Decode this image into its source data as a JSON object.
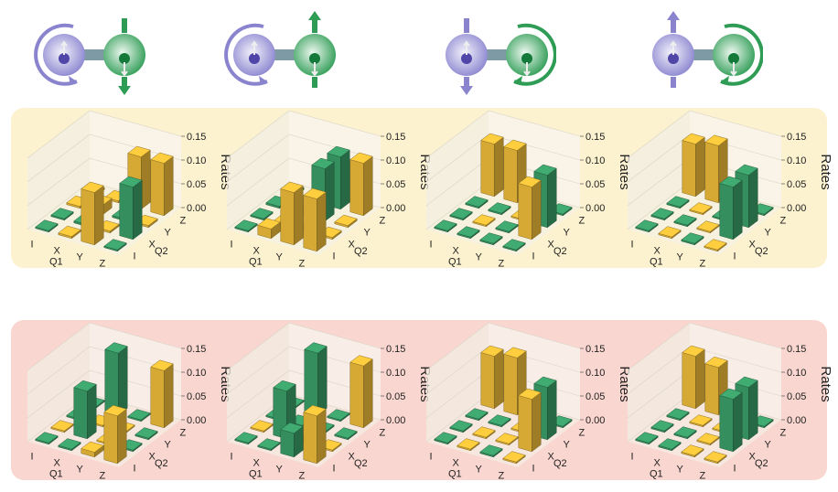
{
  "colors": {
    "qubit1": "#8a84cf",
    "qubit2": "#2e9c55",
    "bar_yellow": "#e8b838",
    "bar_green": "#3a9a66",
    "band_top": "#fcf2cf",
    "band_bottom": "#f9d6cf"
  },
  "diagrams": [
    {
      "q1_arrow": "circular-ccw",
      "q2_arrow": "vertical-down",
      "q1_inner": "up-down",
      "q2_inner": "down"
    },
    {
      "q1_arrow": "circular-ccw",
      "q2_arrow": "vertical-up",
      "q1_inner": "up-down",
      "q2_inner": "down"
    },
    {
      "q1_arrow": "vertical-down",
      "q2_arrow": "circular-cw",
      "q1_inner": "up-down",
      "q2_inner": "down"
    },
    {
      "q1_arrow": "vertical-up",
      "q2_arrow": "circular-cw",
      "q1_inner": "up-down",
      "q2_inner": "down"
    }
  ],
  "chart_data": [
    {
      "type": "bar3d",
      "row": "top",
      "panel": 1,
      "ylabel": "Rates",
      "zticks": [
        "0.00",
        "0.05",
        "0.10",
        "0.15"
      ],
      "zlim": [
        0,
        0.15
      ],
      "q1_ticks": [
        "I",
        "X",
        "Y",
        "Z"
      ],
      "q2_ticks": [
        "I",
        "X",
        "Y",
        "Z"
      ],
      "xlabel": "Q1",
      "qlabel2": "Q2",
      "bars": [
        {
          "q1": "I",
          "q2": "I",
          "v": 0.003,
          "c": "g"
        },
        {
          "q1": "X",
          "q2": "I",
          "v": 0.004,
          "c": "y"
        },
        {
          "q1": "Y",
          "q2": "I",
          "v": 0.11,
          "c": "y"
        },
        {
          "q1": "Z",
          "q2": "I",
          "v": 0.003,
          "c": "g"
        },
        {
          "q1": "I",
          "q2": "X",
          "v": 0.003,
          "c": "g"
        },
        {
          "q1": "X",
          "q2": "X",
          "v": 0.004,
          "c": "g"
        },
        {
          "q1": "Y",
          "q2": "X",
          "v": 0.004,
          "c": "y"
        },
        {
          "q1": "Z",
          "q2": "X",
          "v": 0.11,
          "c": "g"
        },
        {
          "q1": "I",
          "q2": "Y",
          "v": 0.004,
          "c": "y"
        },
        {
          "q1": "X",
          "q2": "Y",
          "v": 0.02,
          "c": "y"
        },
        {
          "q1": "Y",
          "q2": "Y",
          "v": 0.004,
          "c": "g"
        },
        {
          "q1": "Z",
          "q2": "Y",
          "v": 0.004,
          "c": "y"
        },
        {
          "q1": "I",
          "q2": "Z",
          "v": 0.004,
          "c": "y"
        },
        {
          "q1": "X",
          "q2": "Z",
          "v": 0.004,
          "c": "y"
        },
        {
          "q1": "Y",
          "q2": "Z",
          "v": 0.11,
          "c": "y"
        },
        {
          "q1": "Z",
          "q2": "Z",
          "v": 0.11,
          "c": "y"
        }
      ]
    },
    {
      "type": "bar3d",
      "row": "top",
      "panel": 2,
      "ylabel": "Rates",
      "zticks": [
        "0.00",
        "0.05",
        "0.10",
        "0.15"
      ],
      "zlim": [
        0,
        0.15
      ],
      "q1_ticks": [
        "I",
        "X",
        "Y",
        "Z"
      ],
      "q2_ticks": [
        "I",
        "X",
        "Y",
        "Z"
      ],
      "xlabel": "Q1",
      "qlabel2": "Q2",
      "bars": [
        {
          "q1": "I",
          "q2": "I",
          "v": 0.003,
          "c": "g"
        },
        {
          "q1": "X",
          "q2": "I",
          "v": 0.02,
          "c": "y"
        },
        {
          "q1": "Y",
          "q2": "I",
          "v": 0.11,
          "c": "y"
        },
        {
          "q1": "Z",
          "q2": "I",
          "v": 0.11,
          "c": "y"
        },
        {
          "q1": "I",
          "q2": "X",
          "v": 0.003,
          "c": "g"
        },
        {
          "q1": "X",
          "q2": "X",
          "v": 0.004,
          "c": "y"
        },
        {
          "q1": "Y",
          "q2": "X",
          "v": 0.004,
          "c": "g"
        },
        {
          "q1": "Z",
          "q2": "X",
          "v": 0.004,
          "c": "y"
        },
        {
          "q1": "I",
          "q2": "Y",
          "v": 0.004,
          "c": "g"
        },
        {
          "q1": "X",
          "q2": "Y",
          "v": 0.004,
          "c": "g"
        },
        {
          "q1": "Y",
          "q2": "Y",
          "v": 0.11,
          "c": "g"
        },
        {
          "q1": "Z",
          "q2": "Y",
          "v": 0.004,
          "c": "y"
        },
        {
          "q1": "I",
          "q2": "Z",
          "v": 0.004,
          "c": "g"
        },
        {
          "q1": "X",
          "q2": "Z",
          "v": 0.004,
          "c": "g"
        },
        {
          "q1": "Y",
          "q2": "Z",
          "v": 0.11,
          "c": "g"
        },
        {
          "q1": "Z",
          "q2": "Z",
          "v": 0.11,
          "c": "y"
        }
      ]
    },
    {
      "type": "bar3d",
      "row": "top",
      "panel": 3,
      "ylabel": "Rates",
      "zticks": [
        "0.00",
        "0.05",
        "0.10",
        "0.15"
      ],
      "zlim": [
        0,
        0.15
      ],
      "q1_ticks": [
        "I",
        "X",
        "Y",
        "Z"
      ],
      "q2_ticks": [
        "I",
        "X",
        "Y",
        "Z"
      ],
      "xlabel": "Q1",
      "qlabel2": "Q2",
      "bars": [
        {
          "q1": "I",
          "q2": "I",
          "v": 0.003,
          "c": "g"
        },
        {
          "q1": "X",
          "q2": "I",
          "v": 0.003,
          "c": "g"
        },
        {
          "q1": "Y",
          "q2": "I",
          "v": 0.003,
          "c": "g"
        },
        {
          "q1": "Z",
          "q2": "I",
          "v": 0.003,
          "c": "g"
        },
        {
          "q1": "I",
          "q2": "X",
          "v": 0.003,
          "c": "g"
        },
        {
          "q1": "X",
          "q2": "X",
          "v": 0.003,
          "c": "y"
        },
        {
          "q1": "Y",
          "q2": "X",
          "v": 0.003,
          "c": "g"
        },
        {
          "q1": "Z",
          "q2": "X",
          "v": 0.11,
          "c": "y"
        },
        {
          "q1": "I",
          "q2": "Y",
          "v": 0.003,
          "c": "g"
        },
        {
          "q1": "X",
          "q2": "Y",
          "v": 0.003,
          "c": "g"
        },
        {
          "q1": "Y",
          "q2": "Y",
          "v": 0.003,
          "c": "y"
        },
        {
          "q1": "Z",
          "q2": "Y",
          "v": 0.11,
          "c": "g"
        },
        {
          "q1": "I",
          "q2": "Z",
          "v": 0.11,
          "c": "y"
        },
        {
          "q1": "X",
          "q2": "Z",
          "v": 0.11,
          "c": "y"
        },
        {
          "q1": "Y",
          "q2": "Z",
          "v": 0.003,
          "c": "g"
        },
        {
          "q1": "Z",
          "q2": "Z",
          "v": 0.003,
          "c": "g"
        }
      ]
    },
    {
      "type": "bar3d",
      "row": "top",
      "panel": 4,
      "ylabel": "Rates",
      "zticks": [
        "0.00",
        "0.05",
        "0.10",
        "0.15"
      ],
      "zlim": [
        0,
        0.15
      ],
      "q1_ticks": [
        "I",
        "X",
        "Y",
        "Z"
      ],
      "q2_ticks": [
        "I",
        "X",
        "Y",
        "Z"
      ],
      "xlabel": "Q1",
      "qlabel2": "Q2",
      "bars": [
        {
          "q1": "I",
          "q2": "I",
          "v": 0.003,
          "c": "g"
        },
        {
          "q1": "X",
          "q2": "I",
          "v": 0.003,
          "c": "y"
        },
        {
          "q1": "Y",
          "q2": "I",
          "v": 0.003,
          "c": "g"
        },
        {
          "q1": "Z",
          "q2": "I",
          "v": 0.003,
          "c": "y"
        },
        {
          "q1": "I",
          "q2": "X",
          "v": 0.003,
          "c": "g"
        },
        {
          "q1": "X",
          "q2": "X",
          "v": 0.003,
          "c": "g"
        },
        {
          "q1": "Y",
          "q2": "X",
          "v": 0.003,
          "c": "y"
        },
        {
          "q1": "Z",
          "q2": "X",
          "v": 0.11,
          "c": "g"
        },
        {
          "q1": "I",
          "q2": "Y",
          "v": 0.003,
          "c": "g"
        },
        {
          "q1": "X",
          "q2": "Y",
          "v": 0.003,
          "c": "y"
        },
        {
          "q1": "Y",
          "q2": "Y",
          "v": 0.003,
          "c": "g"
        },
        {
          "q1": "Z",
          "q2": "Y",
          "v": 0.11,
          "c": "g"
        },
        {
          "q1": "I",
          "q2": "Z",
          "v": 0.11,
          "c": "y"
        },
        {
          "q1": "X",
          "q2": "Z",
          "v": 0.12,
          "c": "y"
        },
        {
          "q1": "Y",
          "q2": "Z",
          "v": 0.003,
          "c": "y"
        },
        {
          "q1": "Z",
          "q2": "Z",
          "v": 0.003,
          "c": "g"
        }
      ]
    },
    {
      "type": "bar3d",
      "row": "bottom",
      "panel": 1,
      "ylabel": "Rates",
      "zticks": [
        "0.00",
        "0.05",
        "0.10",
        "0.15"
      ],
      "zlim": [
        0,
        0.15
      ],
      "q1_ticks": [
        "I",
        "X",
        "Y",
        "Z"
      ],
      "q2_ticks": [
        "I",
        "X",
        "Y",
        "Z"
      ],
      "xlabel": "Q1",
      "qlabel2": "Q2",
      "bars": [
        {
          "q1": "I",
          "q2": "I",
          "v": 0.003,
          "c": "g"
        },
        {
          "q1": "X",
          "q2": "I",
          "v": 0.003,
          "c": "g"
        },
        {
          "q1": "Y",
          "q2": "I",
          "v": 0.01,
          "c": "y"
        },
        {
          "q1": "Z",
          "q2": "I",
          "v": 0.1,
          "c": "y"
        },
        {
          "q1": "I",
          "q2": "X",
          "v": 0.003,
          "c": "y"
        },
        {
          "q1": "X",
          "q2": "X",
          "v": 0.1,
          "c": "g"
        },
        {
          "q1": "Y",
          "q2": "X",
          "v": 0.003,
          "c": "y"
        },
        {
          "q1": "Z",
          "q2": "X",
          "v": 0.003,
          "c": "g"
        },
        {
          "q1": "I",
          "q2": "Y",
          "v": 0.003,
          "c": "g"
        },
        {
          "q1": "X",
          "q2": "Y",
          "v": 0.003,
          "c": "y"
        },
        {
          "q1": "Y",
          "q2": "Y",
          "v": 0.003,
          "c": "y"
        },
        {
          "q1": "Z",
          "q2": "Y",
          "v": 0.003,
          "c": "g"
        },
        {
          "q1": "I",
          "q2": "Z",
          "v": 0.003,
          "c": "g"
        },
        {
          "q1": "X",
          "q2": "Z",
          "v": 0.13,
          "c": "g"
        },
        {
          "q1": "Y",
          "q2": "Z",
          "v": 0.003,
          "c": "g"
        },
        {
          "q1": "Z",
          "q2": "Z",
          "v": 0.12,
          "c": "y"
        }
      ]
    },
    {
      "type": "bar3d",
      "row": "bottom",
      "panel": 2,
      "ylabel": "Rates",
      "zticks": [
        "0.00",
        "0.05",
        "0.10",
        "0.15"
      ],
      "zlim": [
        0,
        0.15
      ],
      "q1_ticks": [
        "I",
        "X",
        "Y",
        "Z"
      ],
      "q2_ticks": [
        "I",
        "X",
        "Y",
        "Z"
      ],
      "xlabel": "Q1",
      "qlabel2": "Q2",
      "bars": [
        {
          "q1": "I",
          "q2": "I",
          "v": 0.003,
          "c": "g"
        },
        {
          "q1": "X",
          "q2": "I",
          "v": 0.003,
          "c": "g"
        },
        {
          "q1": "Y",
          "q2": "I",
          "v": 0.05,
          "c": "g"
        },
        {
          "q1": "Z",
          "q2": "I",
          "v": 0.1,
          "c": "y"
        },
        {
          "q1": "I",
          "q2": "X",
          "v": 0.003,
          "c": "y"
        },
        {
          "q1": "X",
          "q2": "X",
          "v": 0.1,
          "c": "g"
        },
        {
          "q1": "Y",
          "q2": "X",
          "v": 0.003,
          "c": "g"
        },
        {
          "q1": "Z",
          "q2": "X",
          "v": 0.003,
          "c": "y"
        },
        {
          "q1": "I",
          "q2": "Y",
          "v": 0.003,
          "c": "g"
        },
        {
          "q1": "X",
          "q2": "Y",
          "v": 0.003,
          "c": "g"
        },
        {
          "q1": "Y",
          "q2": "Y",
          "v": 0.003,
          "c": "g"
        },
        {
          "q1": "Z",
          "q2": "Y",
          "v": 0.003,
          "c": "g"
        },
        {
          "q1": "I",
          "q2": "Z",
          "v": 0.003,
          "c": "g"
        },
        {
          "q1": "X",
          "q2": "Z",
          "v": 0.13,
          "c": "g"
        },
        {
          "q1": "Y",
          "q2": "Z",
          "v": 0.003,
          "c": "g"
        },
        {
          "q1": "Z",
          "q2": "Z",
          "v": 0.13,
          "c": "y"
        }
      ]
    },
    {
      "type": "bar3d",
      "row": "bottom",
      "panel": 3,
      "ylabel": "Rates",
      "zticks": [
        "0.00",
        "0.05",
        "0.10",
        "0.15"
      ],
      "zlim": [
        0,
        0.15
      ],
      "q1_ticks": [
        "I",
        "X",
        "Y",
        "Z"
      ],
      "q2_ticks": [
        "I",
        "X",
        "Y",
        "Z"
      ],
      "xlabel": "Q1",
      "qlabel2": "Q2",
      "bars": [
        {
          "q1": "I",
          "q2": "I",
          "v": 0.003,
          "c": "g"
        },
        {
          "q1": "X",
          "q2": "I",
          "v": 0.003,
          "c": "y"
        },
        {
          "q1": "Y",
          "q2": "I",
          "v": 0.003,
          "c": "g"
        },
        {
          "q1": "Z",
          "q2": "I",
          "v": 0.003,
          "c": "y"
        },
        {
          "q1": "I",
          "q2": "X",
          "v": 0.003,
          "c": "g"
        },
        {
          "q1": "X",
          "q2": "X",
          "v": 0.003,
          "c": "y"
        },
        {
          "q1": "Y",
          "q2": "X",
          "v": 0.003,
          "c": "y"
        },
        {
          "q1": "Z",
          "q2": "X",
          "v": 0.11,
          "c": "y"
        },
        {
          "q1": "I",
          "q2": "Y",
          "v": 0.003,
          "c": "g"
        },
        {
          "q1": "X",
          "q2": "Y",
          "v": 0.003,
          "c": "g"
        },
        {
          "q1": "Y",
          "q2": "Y",
          "v": 0.003,
          "c": "y"
        },
        {
          "q1": "Z",
          "q2": "Y",
          "v": 0.11,
          "c": "g"
        },
        {
          "q1": "I",
          "q2": "Z",
          "v": 0.11,
          "c": "y"
        },
        {
          "q1": "X",
          "q2": "Z",
          "v": 0.12,
          "c": "y"
        },
        {
          "q1": "Y",
          "q2": "Z",
          "v": 0.003,
          "c": "y"
        },
        {
          "q1": "Z",
          "q2": "Z",
          "v": 0.003,
          "c": "g"
        }
      ]
    },
    {
      "type": "bar3d",
      "row": "bottom",
      "panel": 4,
      "ylabel": "Rates",
      "zticks": [
        "0.00",
        "0.05",
        "0.10",
        "0.15"
      ],
      "zlim": [
        0,
        0.15
      ],
      "q1_ticks": [
        "I",
        "X",
        "Y",
        "Z"
      ],
      "q2_ticks": [
        "I",
        "X",
        "Y",
        "Z"
      ],
      "xlabel": "Q1",
      "qlabel2": "Q2",
      "bars": [
        {
          "q1": "I",
          "q2": "I",
          "v": 0.003,
          "c": "g"
        },
        {
          "q1": "X",
          "q2": "I",
          "v": 0.003,
          "c": "g"
        },
        {
          "q1": "Y",
          "q2": "I",
          "v": 0.003,
          "c": "y"
        },
        {
          "q1": "Z",
          "q2": "I",
          "v": 0.003,
          "c": "y"
        },
        {
          "q1": "I",
          "q2": "X",
          "v": 0.003,
          "c": "g"
        },
        {
          "q1": "X",
          "q2": "X",
          "v": 0.003,
          "c": "g"
        },
        {
          "q1": "Y",
          "q2": "X",
          "v": 0.003,
          "c": "y"
        },
        {
          "q1": "Z",
          "q2": "X",
          "v": 0.11,
          "c": "g"
        },
        {
          "q1": "I",
          "q2": "Y",
          "v": 0.003,
          "c": "g"
        },
        {
          "q1": "X",
          "q2": "Y",
          "v": 0.003,
          "c": "y"
        },
        {
          "q1": "Y",
          "q2": "Y",
          "v": 0.003,
          "c": "y"
        },
        {
          "q1": "Z",
          "q2": "Y",
          "v": 0.11,
          "c": "g"
        },
        {
          "q1": "I",
          "q2": "Z",
          "v": 0.11,
          "c": "y"
        },
        {
          "q1": "X",
          "q2": "Z",
          "v": 0.1,
          "c": "y"
        },
        {
          "q1": "Y",
          "q2": "Z",
          "v": 0.003,
          "c": "g"
        },
        {
          "q1": "Z",
          "q2": "Z",
          "v": 0.003,
          "c": "g"
        }
      ]
    }
  ]
}
